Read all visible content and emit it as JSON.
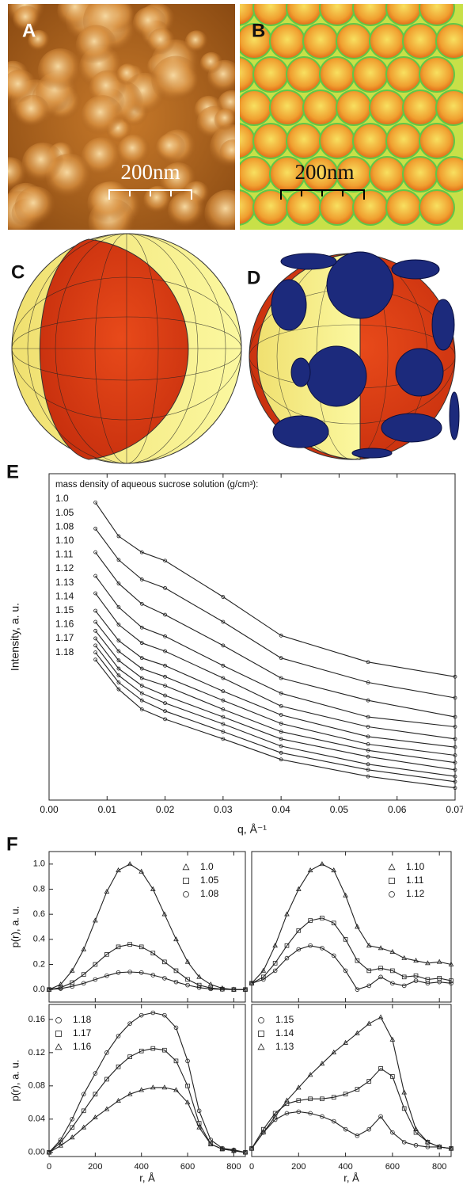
{
  "panels": {
    "A": {
      "label": "A",
      "scale_bar": "200nm"
    },
    "B": {
      "label": "B",
      "scale_bar": "200nm"
    },
    "C": {
      "label": "C"
    },
    "D": {
      "label": "D"
    },
    "E": {
      "label": "E"
    },
    "F": {
      "label": "F"
    }
  },
  "chart_data": [
    {
      "type": "line",
      "annotation": "mass density of aqueous sucrose solution (g/cm³):",
      "x_label": "q, Å⁻¹",
      "y_label": "Intensity, a. u.",
      "log_y": true,
      "legend": "left",
      "xtick_labels": true,
      "x": [
        0.008,
        0.012,
        0.016,
        0.02,
        0.03,
        0.04,
        0.055,
        0.07
      ],
      "xlim": [
        0,
        0.07
      ],
      "ylim": [
        7e-05,
        1
      ],
      "xticks": [
        {
          "value": 0,
          "label": "0.00"
        },
        0.01,
        0.02,
        0.03,
        0.04,
        0.05,
        0.06,
        0.07
      ],
      "series": [
        {
          "name": "1.0",
          "color": "#222222",
          "marker": "circle",
          "values": [
            0.43,
            0.16,
            0.1,
            0.078,
            0.027,
            0.0087,
            0.004,
            0.0026
          ]
        },
        {
          "name": "1.05",
          "color": "#222222",
          "marker": "circle",
          "values": [
            0.2,
            0.08,
            0.045,
            0.035,
            0.013,
            0.0045,
            0.0022,
            0.0014
          ]
        },
        {
          "name": "1.08",
          "color": "#222222",
          "marker": "circle",
          "values": [
            0.1,
            0.04,
            0.022,
            0.016,
            0.0065,
            0.0025,
            0.0013,
            0.0008
          ]
        },
        {
          "name": "1.10",
          "color": "#222222",
          "marker": "circle",
          "values": [
            0.05,
            0.02,
            0.011,
            0.0085,
            0.0036,
            0.0016,
            0.0008,
            0.0006
          ]
        },
        {
          "name": "1.11",
          "color": "#222222",
          "marker": "circle",
          "values": [
            0.03,
            0.012,
            0.007,
            0.0055,
            0.0025,
            0.0011,
            0.0006,
            0.00042
          ]
        },
        {
          "name": "1.12",
          "color": "#222222",
          "marker": "circle",
          "values": [
            0.018,
            0.0075,
            0.0045,
            0.0036,
            0.0017,
            0.00085,
            0.00045,
            0.00033
          ]
        },
        {
          "name": "1.13",
          "color": "#222222",
          "marker": "circle",
          "values": [
            0.013,
            0.0055,
            0.0033,
            0.0026,
            0.0013,
            0.00066,
            0.00036,
            0.00026
          ]
        },
        {
          "name": "1.14",
          "color": "#222222",
          "marker": "circle",
          "values": [
            0.01,
            0.0042,
            0.0025,
            0.002,
            0.001,
            0.00052,
            0.0003,
            0.00021
          ]
        },
        {
          "name": "1.15",
          "color": "#222222",
          "marker": "circle",
          "values": [
            0.008,
            0.0033,
            0.002,
            0.0015,
            0.0008,
            0.00042,
            0.00025,
            0.00017
          ]
        },
        {
          "name": "1.16",
          "color": "#222222",
          "marker": "circle",
          "values": [
            0.0065,
            0.0027,
            0.0016,
            0.0012,
            0.00065,
            0.00034,
            0.0002,
            0.00014
          ]
        },
        {
          "name": "1.17",
          "color": "#222222",
          "marker": "circle",
          "values": [
            0.0053,
            0.0022,
            0.0013,
            0.00095,
            0.00052,
            0.00028,
            0.00017,
            0.00012
          ]
        },
        {
          "name": "1.18",
          "color": "#222222",
          "marker": "circle",
          "values": [
            0.0043,
            0.0018,
            0.001,
            0.00075,
            0.00042,
            0.00023,
            0.00014,
            0.0001
          ]
        }
      ]
    },
    {
      "type": "line",
      "y_label": "p(r), a. u.",
      "legend": "top-right",
      "xtick_labels": false,
      "x": [
        0,
        50,
        100,
        150,
        200,
        250,
        300,
        350,
        400,
        450,
        500,
        550,
        600,
        650,
        700,
        750,
        800,
        850
      ],
      "xlim": [
        0,
        850
      ],
      "ylim": [
        -0.1,
        1.1
      ],
      "xticks": [
        0,
        200,
        400,
        600,
        800
      ],
      "yticks": [
        {
          "value": 0,
          "label": "0.0"
        },
        0.2,
        0.4,
        0.6,
        0.8,
        {
          "value": 1,
          "label": "1.0"
        }
      ],
      "series": [
        {
          "name": "1.0",
          "color": "#222222",
          "marker": "triangle",
          "values": [
            0,
            0.04,
            0.15,
            0.32,
            0.55,
            0.78,
            0.95,
            1.0,
            0.94,
            0.8,
            0.6,
            0.4,
            0.22,
            0.1,
            0.04,
            0.01,
            0,
            0
          ]
        },
        {
          "name": "1.05",
          "color": "#222222",
          "marker": "square",
          "values": [
            0,
            0.015,
            0.055,
            0.12,
            0.2,
            0.28,
            0.34,
            0.36,
            0.34,
            0.29,
            0.22,
            0.15,
            0.08,
            0.035,
            0.012,
            0.003,
            0,
            0
          ]
        },
        {
          "name": "1.08",
          "color": "#222222",
          "marker": "circle",
          "values": [
            0,
            0.007,
            0.025,
            0.05,
            0.08,
            0.11,
            0.135,
            0.14,
            0.135,
            0.115,
            0.09,
            0.06,
            0.035,
            0.015,
            0.005,
            0.001,
            0,
            0
          ]
        }
      ]
    },
    {
      "type": "line",
      "legend": "top-right",
      "xtick_labels": false,
      "x": [
        0,
        50,
        100,
        150,
        200,
        250,
        300,
        350,
        400,
        450,
        500,
        550,
        600,
        650,
        700,
        750,
        800,
        850
      ],
      "xlim": [
        0,
        850
      ],
      "ylim": [
        -0.15,
        1.05
      ],
      "xticks": [
        0,
        200,
        400,
        600,
        800
      ],
      "series": [
        {
          "name": "1.10",
          "color": "#222222",
          "marker": "triangle",
          "values": [
            0,
            0.1,
            0.3,
            0.55,
            0.75,
            0.9,
            0.95,
            0.9,
            0.7,
            0.45,
            0.3,
            0.28,
            0.25,
            0.2,
            0.18,
            0.16,
            0.17,
            0.15
          ]
        },
        {
          "name": "1.11",
          "color": "#222222",
          "marker": "square",
          "values": [
            0,
            0.05,
            0.16,
            0.3,
            0.42,
            0.5,
            0.52,
            0.48,
            0.35,
            0.18,
            0.1,
            0.12,
            0.1,
            0.05,
            0.06,
            0.03,
            0.04,
            0.02
          ]
        },
        {
          "name": "1.12",
          "color": "#222222",
          "marker": "circle",
          "values": [
            0,
            0.03,
            0.1,
            0.2,
            0.27,
            0.3,
            0.28,
            0.22,
            0.1,
            -0.05,
            -0.02,
            0.05,
            0,
            -0.02,
            0.02,
            0,
            0.01,
            0
          ]
        }
      ]
    },
    {
      "type": "line",
      "y_label": "p(r), a. u.",
      "x_label": "r, Å",
      "legend": "top-left",
      "xtick_labels": true,
      "x": [
        0,
        50,
        100,
        150,
        200,
        250,
        300,
        350,
        400,
        450,
        500,
        550,
        600,
        650,
        700,
        750,
        800,
        850
      ],
      "xlim": [
        0,
        850
      ],
      "ylim": [
        -0.005,
        0.178
      ],
      "xticks": [
        0,
        200,
        400,
        600,
        800
      ],
      "yticks": [
        {
          "value": 0,
          "label": "0.00"
        },
        0.04,
        0.08,
        0.12,
        0.16
      ],
      "series": [
        {
          "name": "1.18",
          "color": "#222222",
          "marker": "circle",
          "values": [
            0,
            0.015,
            0.04,
            0.07,
            0.095,
            0.12,
            0.14,
            0.155,
            0.165,
            0.168,
            0.165,
            0.15,
            0.11,
            0.05,
            0.015,
            0.005,
            0.003,
            0
          ]
        },
        {
          "name": "1.17",
          "color": "#222222",
          "marker": "square",
          "values": [
            0,
            0.012,
            0.03,
            0.05,
            0.07,
            0.088,
            0.103,
            0.115,
            0.122,
            0.125,
            0.123,
            0.11,
            0.08,
            0.035,
            0.01,
            0.004,
            0.002,
            0
          ]
        },
        {
          "name": "1.16",
          "color": "#222222",
          "marker": "triangle",
          "values": [
            0,
            0.008,
            0.018,
            0.03,
            0.042,
            0.052,
            0.062,
            0.07,
            0.075,
            0.078,
            0.078,
            0.075,
            0.06,
            0.03,
            0.01,
            0.004,
            0.002,
            0
          ]
        }
      ]
    },
    {
      "type": "line",
      "x_label": "r, Å",
      "legend": "top-left",
      "xtick_labels": true,
      "x": [
        0,
        50,
        100,
        150,
        200,
        250,
        300,
        350,
        400,
        450,
        500,
        550,
        600,
        650,
        700,
        750,
        800,
        850
      ],
      "xlim": [
        0,
        850
      ],
      "ylim": [
        -0.05,
        0.9
      ],
      "xticks": [
        0,
        200,
        400,
        600,
        800
      ],
      "series": [
        {
          "name": "1.15",
          "color": "#222222",
          "marker": "circle",
          "values": [
            0,
            0.1,
            0.18,
            0.22,
            0.23,
            0.22,
            0.2,
            0.17,
            0.12,
            0.08,
            0.12,
            0.2,
            0.1,
            0.04,
            0.02,
            0.01,
            0.01,
            0
          ]
        },
        {
          "name": "1.14",
          "color": "#222222",
          "marker": "square",
          "values": [
            0,
            0.12,
            0.22,
            0.28,
            0.3,
            0.31,
            0.31,
            0.32,
            0.34,
            0.37,
            0.42,
            0.5,
            0.45,
            0.25,
            0.1,
            0.04,
            0.01,
            0
          ]
        },
        {
          "name": "1.13",
          "color": "#222222",
          "marker": "triangle",
          "values": [
            0,
            0.1,
            0.2,
            0.3,
            0.38,
            0.46,
            0.53,
            0.6,
            0.66,
            0.72,
            0.78,
            0.82,
            0.68,
            0.35,
            0.12,
            0.04,
            0.01,
            0
          ]
        }
      ]
    }
  ]
}
